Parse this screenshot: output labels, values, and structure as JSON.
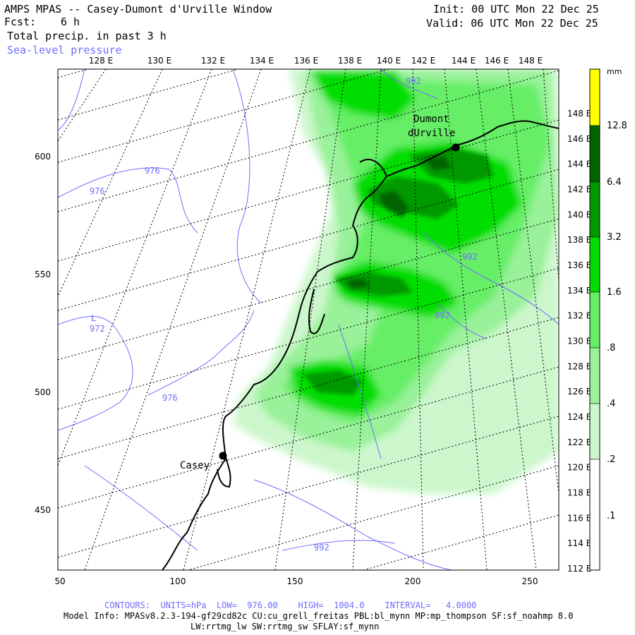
{
  "header": {
    "title": "AMPS MPAS -- Casey-Dumont d'Urville Window",
    "forecast_label": "Fcst:",
    "forecast_value": "6 h",
    "field_name": "Total precip. in past 3 h",
    "overlay_name": "Sea-level pressure",
    "init_line": "Init: 00 UTC Mon 22 Dec 25",
    "valid_line": "Valid: 06 UTC Mon 22 Dec 25"
  },
  "axes": {
    "top_longitudes": [
      "128 E",
      "130 E",
      "132 E",
      "134 E",
      "136 E",
      "138 E",
      "140 E",
      "142 E",
      "144 E",
      "146 E",
      "148 E"
    ],
    "right_latitudes": [
      "148 E",
      "146 E",
      "144 E",
      "142 E",
      "140 E",
      "138 E",
      "136 E",
      "134 E",
      "132 E",
      "130 E",
      "128 E",
      "126 E",
      "124 E",
      "122 E",
      "120 E",
      "118 E",
      "116 E",
      "114 E",
      "112 E"
    ],
    "left_y_ticks": [
      "600",
      "550",
      "500",
      "450"
    ],
    "bottom_x_ticks": [
      "50",
      "100",
      "150",
      "200",
      "250"
    ]
  },
  "colorbar": {
    "unit": "mm",
    "labels": [
      "12.8",
      "6.4",
      "3.2",
      "1.6",
      ".8",
      ".4",
      ".2",
      ".1"
    ],
    "colors": [
      "#ffff00",
      "#006400",
      "#009900",
      "#00dd00",
      "#66ee66",
      "#99f199",
      "#ccf7cc",
      "#ffffff"
    ]
  },
  "places": [
    {
      "name": "Dumont\ndUrville"
    },
    {
      "name": "Casey"
    }
  ],
  "pressure_labels": [
    "992",
    "976",
    "976",
    "992",
    "992",
    "L\n972",
    "976",
    "992"
  ],
  "footer": {
    "contours_line": "CONTOURS:  UNITS=hPa  LOW=  976.00    HIGH=  1004.0    INTERVAL=   4.0000",
    "model_line": "Model Info: MPASv8.2.3-194-gf29cd82c CU:cu_grell_freitas PBL:bl_mynn MP:mp_thompson SF:sf_noahmp 8.0",
    "physics_line": "LW:rrtmg_lw SW:rrtmg_sw SFLAY:sf_mynn"
  }
}
